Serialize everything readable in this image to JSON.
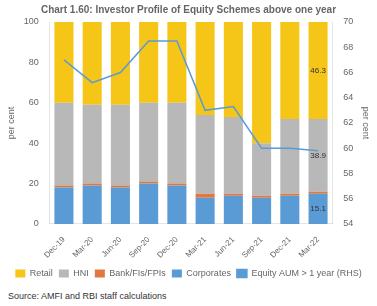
{
  "chart_data": {
    "type": "bar",
    "title": "Chart 1.60: Investor Profile of Equity Schemes above one year",
    "categories": [
      "Dec-19",
      "Mar-20",
      "Jun-20",
      "Sep-20",
      "Dec-20",
      "Mar-21",
      "Jun-21",
      "Sep-21",
      "Dec-21",
      "Mar-22"
    ],
    "series": [
      {
        "name": "Corporates",
        "color": "#5B9BD5",
        "values": [
          18,
          19,
          18,
          20,
          19,
          13,
          14,
          13,
          14,
          15
        ]
      },
      {
        "name": "Bank/FIs/FPIs",
        "color": "#E07840",
        "values": [
          1,
          1,
          1,
          1,
          1,
          2,
          1,
          1,
          1,
          1
        ]
      },
      {
        "name": "HNI",
        "color": "#B8B8B8",
        "values": [
          41,
          39,
          40,
          39,
          40,
          39,
          38,
          26,
          37,
          36
        ]
      },
      {
        "name": "Retail",
        "color": "#F5C518",
        "values": [
          40,
          41,
          41,
          40,
          40,
          46,
          47,
          60,
          48,
          48
        ]
      },
      {
        "name": "Equity AUM > 1 year (RHS)",
        "type": "line",
        "axis": "y2",
        "color": "#5B9BD5",
        "values": [
          67.0,
          65.2,
          66.0,
          68.5,
          68.5,
          63.0,
          63.3,
          60.0,
          60.0,
          59.8
        ]
      }
    ],
    "stacked": true,
    "ylabel": "per cent",
    "y2label": "per cent",
    "ylim": [
      0,
      100
    ],
    "yticks": [
      0,
      20,
      40,
      60,
      80,
      100
    ],
    "y2lim": [
      54,
      70
    ],
    "y2ticks": [
      54,
      56,
      58,
      60,
      62,
      64,
      66,
      68,
      70
    ],
    "annotations": [
      {
        "text": "46.3",
        "series": "Retail"
      },
      {
        "text": "38.9",
        "series": "HNI"
      },
      {
        "text": "15.1",
        "series": "Corporates"
      }
    ],
    "source": "Source: AMFI and RBI staff calculations",
    "grid": false,
    "legend": "bottom"
  }
}
